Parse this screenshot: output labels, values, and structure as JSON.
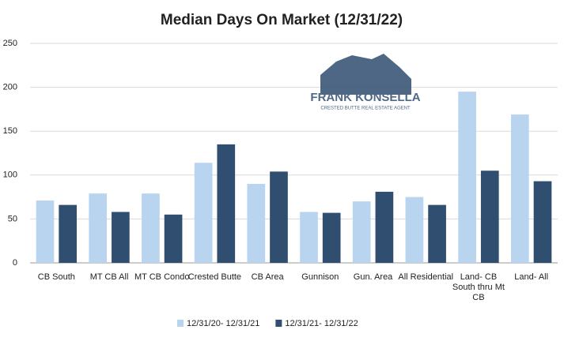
{
  "chart_data": {
    "type": "bar",
    "title": "Median Days On Market (12/31/22)",
    "categories": [
      "CB South",
      "MT CB All",
      "MT CB Condo",
      "Crested Butte",
      "CB Area",
      "Gunnison",
      "Gun. Area",
      "All Residential",
      "Land- CB South thru Mt CB",
      "Land- All"
    ],
    "series": [
      {
        "name": "12/31/20- 12/31/21",
        "color": "#b8d4ef",
        "values": [
          71,
          79,
          79,
          114,
          90,
          58,
          70,
          75,
          195,
          169
        ]
      },
      {
        "name": "12/31/21- 12/31/22",
        "color": "#2f4e70",
        "values": [
          66,
          58,
          55,
          135,
          104,
          57,
          81,
          66,
          105,
          93
        ]
      }
    ],
    "ylim": [
      0,
      250
    ],
    "yticks": [
      0,
      50,
      100,
      150,
      200,
      250
    ],
    "grid": true,
    "legend": "bottom"
  },
  "logo": {
    "name": "FRANK KONSELLA",
    "tagline": "CRESTED BUTTE REAL ESTATE AGENT"
  }
}
